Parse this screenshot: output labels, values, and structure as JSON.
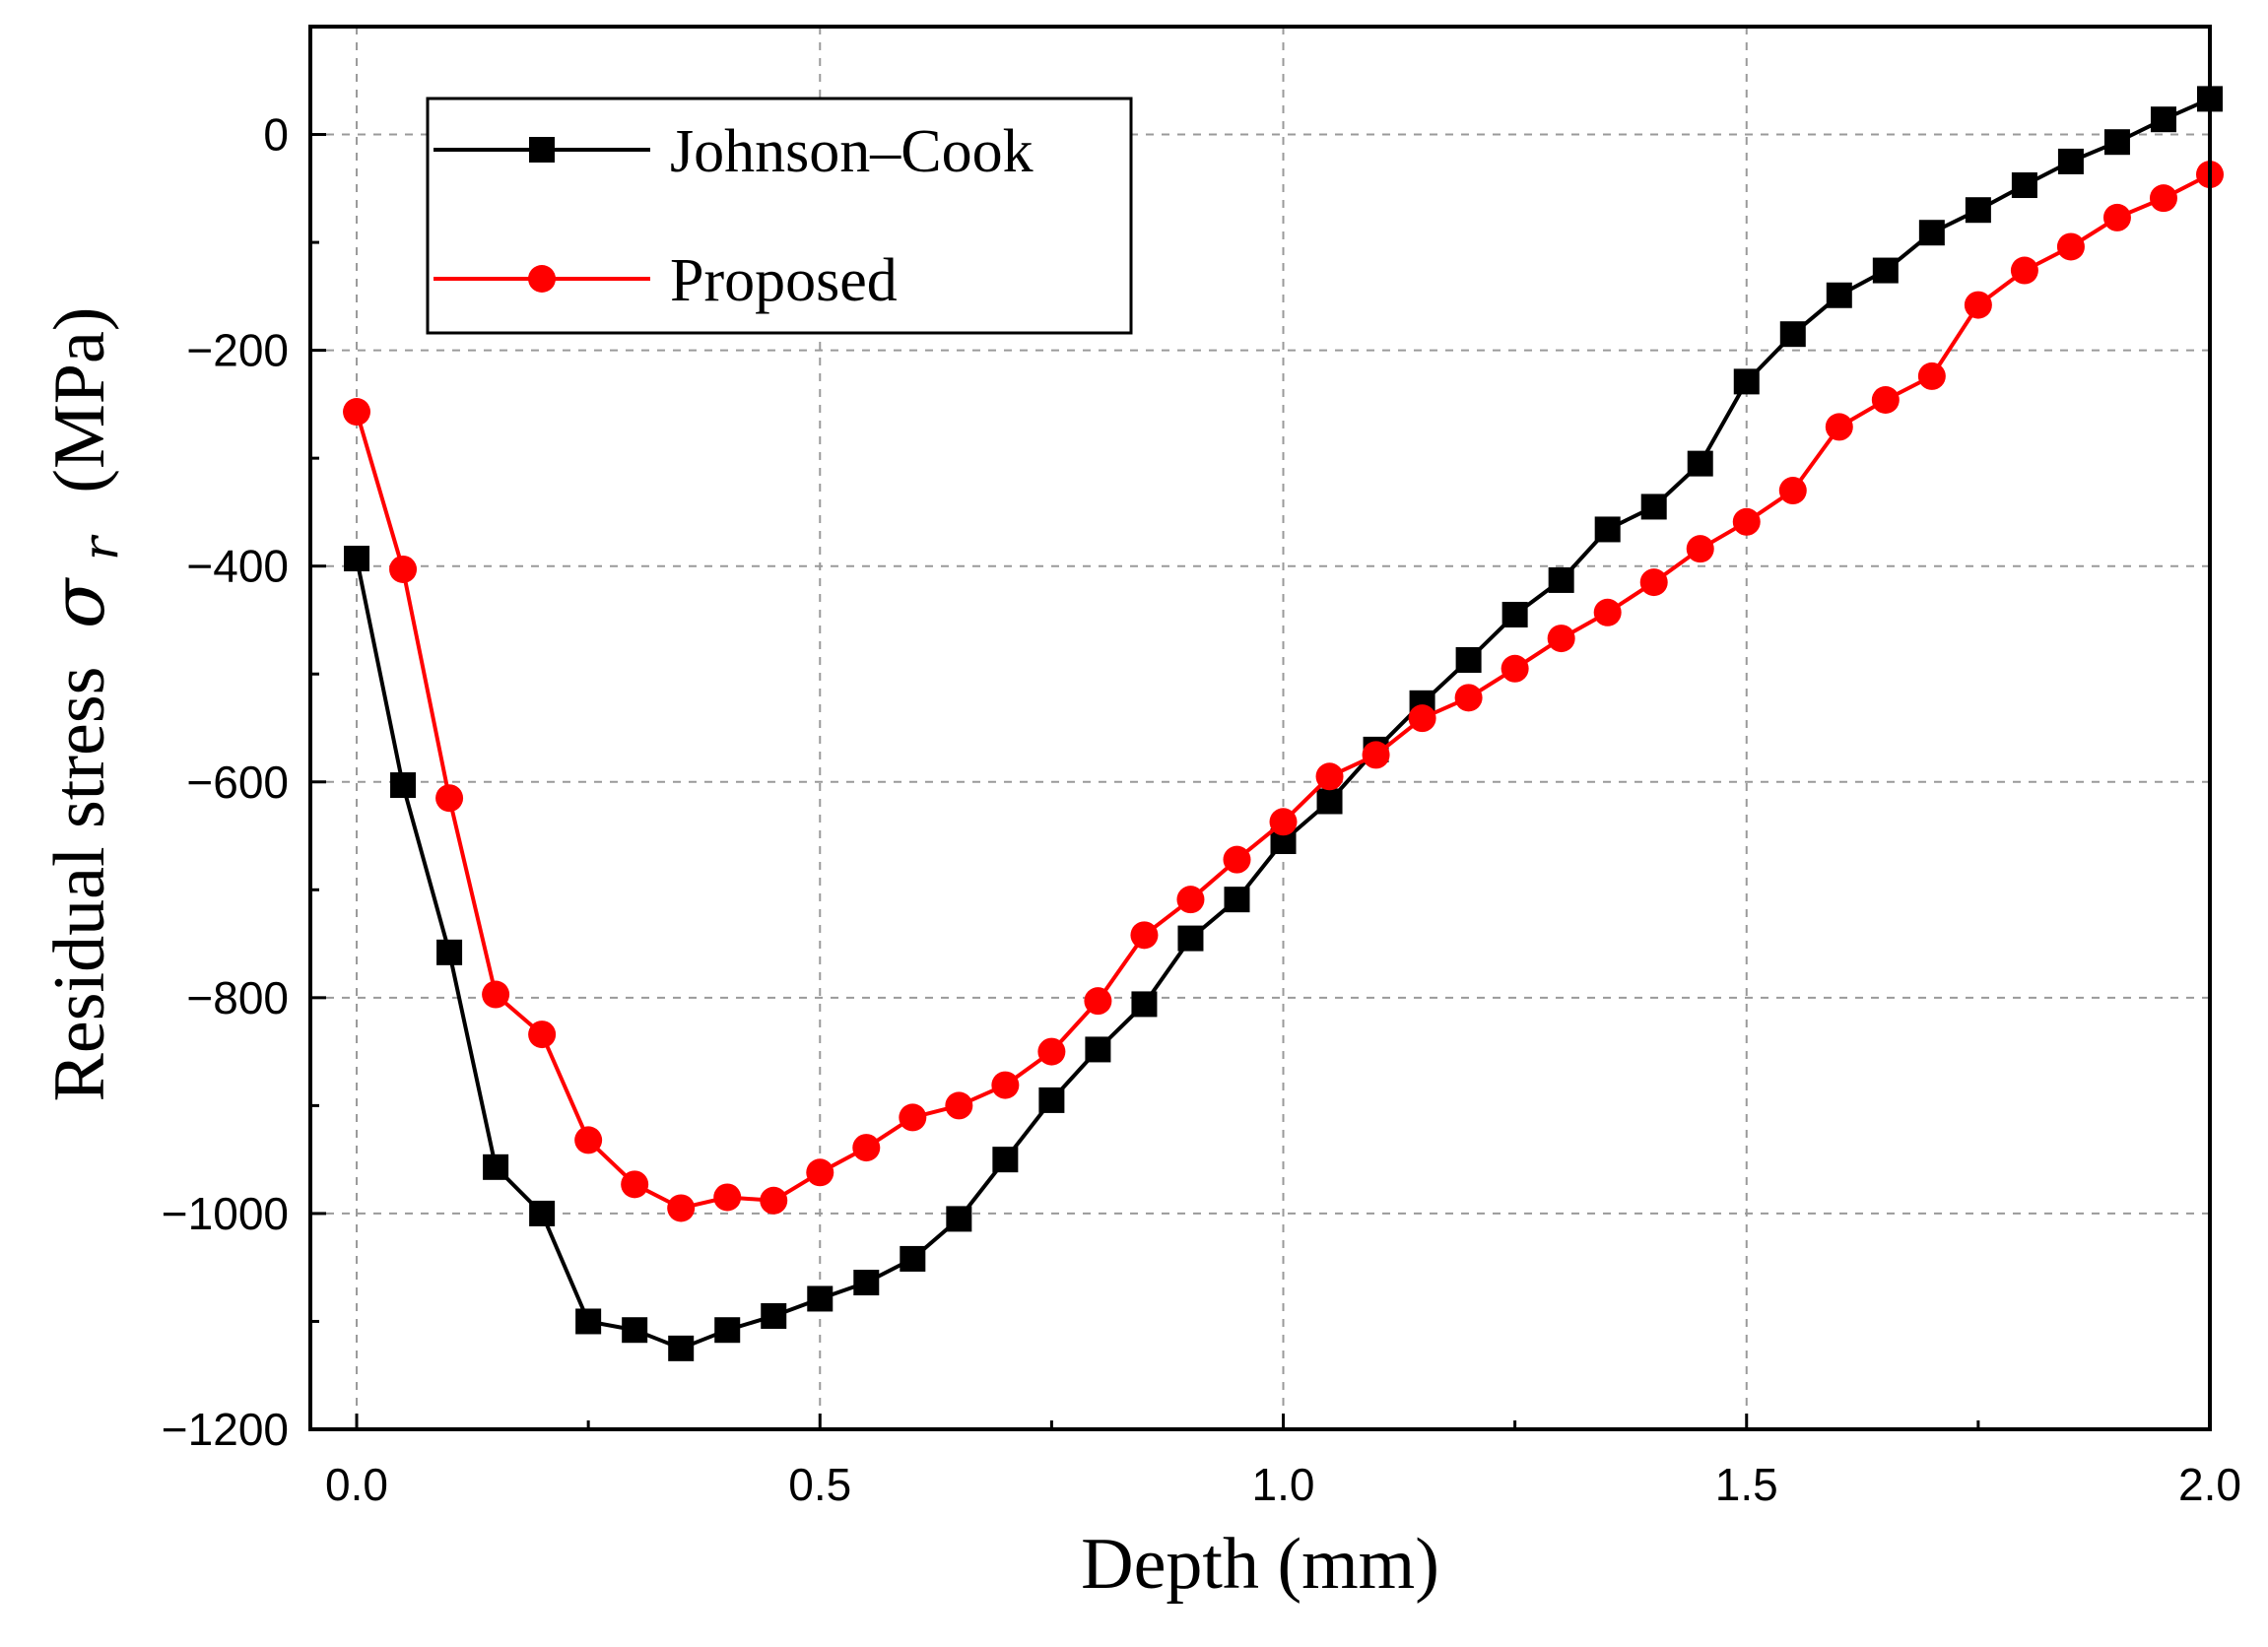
{
  "chart_data": {
    "type": "line",
    "title": "",
    "xlabel": "Depth (mm)",
    "ylabel": {
      "prefix": "Residual stress",
      "symbol": "σ",
      "subscript": "r",
      "unit": "(MPa)"
    },
    "xlim": [
      -0.05,
      2.0
    ],
    "ylim": [
      -1200,
      100
    ],
    "x_ticks": [
      0.0,
      0.5,
      1.0,
      1.5,
      2.0
    ],
    "x_tick_labels": [
      "0.0",
      "0.5",
      "1.0",
      "1.5",
      "2.0"
    ],
    "y_ticks": [
      0,
      -200,
      -400,
      -600,
      -800,
      -1000,
      -1200
    ],
    "y_tick_labels": [
      "0",
      "−200",
      "−400",
      "−600",
      "−800",
      "−1000",
      "−1200"
    ],
    "grid": true,
    "legend_position": "top-left",
    "x": [
      0.0,
      0.05,
      0.1,
      0.15,
      0.2,
      0.25,
      0.3,
      0.35,
      0.4,
      0.45,
      0.5,
      0.55,
      0.6,
      0.65,
      0.7,
      0.75,
      0.8,
      0.85,
      0.9,
      0.95,
      1.0,
      1.05,
      1.1,
      1.15,
      1.2,
      1.25,
      1.3,
      1.35,
      1.4,
      1.45,
      1.5,
      1.55,
      1.6,
      1.65,
      1.7,
      1.75,
      1.8,
      1.85,
      1.9,
      1.95,
      2.0
    ],
    "series": [
      {
        "name": "Johnson–Cook",
        "color": "#000000",
        "marker": "square",
        "values": [
          -393,
          -603,
          -758,
          -957,
          -1000,
          -1100,
          -1108,
          -1125,
          -1108,
          -1095,
          -1079,
          -1064,
          -1042,
          -1005,
          -950,
          -895,
          -848,
          -806,
          -745,
          -709,
          -655,
          -618,
          -570,
          -527,
          -487,
          -445,
          -413,
          -366,
          -345,
          -305,
          -229,
          -185,
          -149,
          -126,
          -91,
          -70,
          -47,
          -25,
          -7,
          14,
          33
        ]
      },
      {
        "name": "Proposed",
        "color": "#ff0000",
        "marker": "circle",
        "values": [
          -257,
          -403,
          -615,
          -797,
          -834,
          -932,
          -973,
          -995,
          -985,
          -988,
          -962,
          -939,
          -911,
          -900,
          -881,
          -850,
          -803,
          -742,
          -709,
          -672,
          -637,
          -595,
          -575,
          -541,
          -522,
          -495,
          -467,
          -443,
          -415,
          -384,
          -359,
          -330,
          -271,
          -246,
          -224,
          -158,
          -126,
          -104,
          -77,
          -59,
          -37
        ]
      }
    ]
  }
}
